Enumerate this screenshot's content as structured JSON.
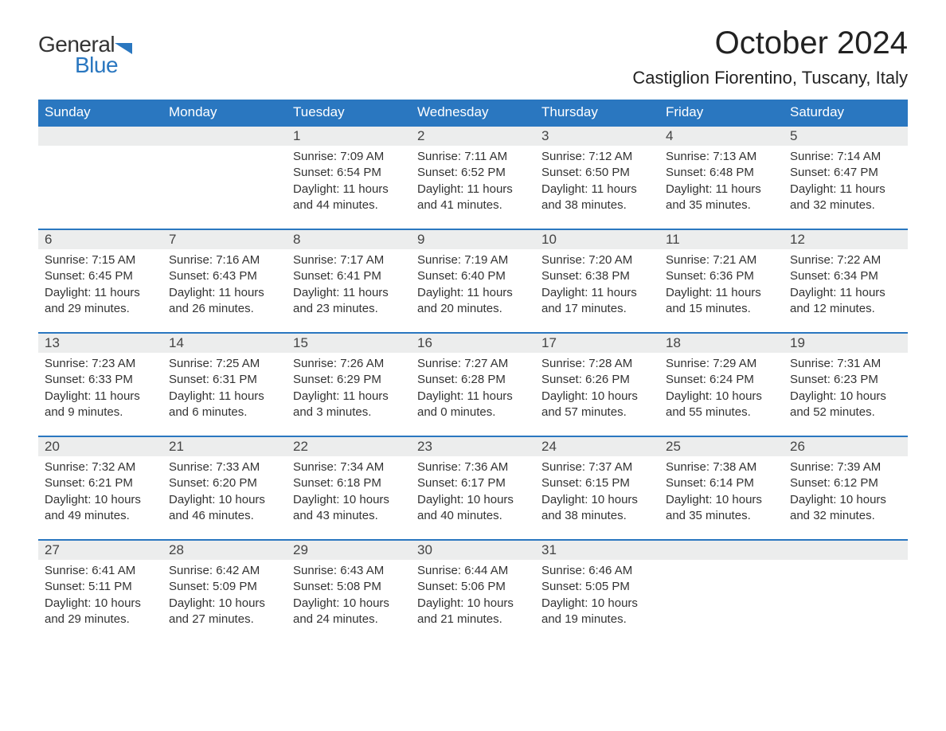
{
  "brand": {
    "text1": "General",
    "text2": "Blue",
    "icon_color": "#2a77c0"
  },
  "title": "October 2024",
  "location": "Castiglion Fiorentino, Tuscany, Italy",
  "colors": {
    "header_bg": "#2a77c0",
    "header_text": "#ffffff",
    "daynum_bg": "#eceded",
    "daynum_border": "#2a77c0",
    "body_text": "#333333",
    "page_bg": "#ffffff"
  },
  "typography": {
    "title_fontsize": 40,
    "location_fontsize": 22,
    "header_fontsize": 17,
    "daynum_fontsize": 17,
    "detail_fontsize": 15
  },
  "daysOfWeek": [
    "Sunday",
    "Monday",
    "Tuesday",
    "Wednesday",
    "Thursday",
    "Friday",
    "Saturday"
  ],
  "weeks": [
    [
      null,
      null,
      {
        "n": "1",
        "sunrise": "7:09 AM",
        "sunset": "6:54 PM",
        "daylight": "11 hours and 44 minutes."
      },
      {
        "n": "2",
        "sunrise": "7:11 AM",
        "sunset": "6:52 PM",
        "daylight": "11 hours and 41 minutes."
      },
      {
        "n": "3",
        "sunrise": "7:12 AM",
        "sunset": "6:50 PM",
        "daylight": "11 hours and 38 minutes."
      },
      {
        "n": "4",
        "sunrise": "7:13 AM",
        "sunset": "6:48 PM",
        "daylight": "11 hours and 35 minutes."
      },
      {
        "n": "5",
        "sunrise": "7:14 AM",
        "sunset": "6:47 PM",
        "daylight": "11 hours and 32 minutes."
      }
    ],
    [
      {
        "n": "6",
        "sunrise": "7:15 AM",
        "sunset": "6:45 PM",
        "daylight": "11 hours and 29 minutes."
      },
      {
        "n": "7",
        "sunrise": "7:16 AM",
        "sunset": "6:43 PM",
        "daylight": "11 hours and 26 minutes."
      },
      {
        "n": "8",
        "sunrise": "7:17 AM",
        "sunset": "6:41 PM",
        "daylight": "11 hours and 23 minutes."
      },
      {
        "n": "9",
        "sunrise": "7:19 AM",
        "sunset": "6:40 PM",
        "daylight": "11 hours and 20 minutes."
      },
      {
        "n": "10",
        "sunrise": "7:20 AM",
        "sunset": "6:38 PM",
        "daylight": "11 hours and 17 minutes."
      },
      {
        "n": "11",
        "sunrise": "7:21 AM",
        "sunset": "6:36 PM",
        "daylight": "11 hours and 15 minutes."
      },
      {
        "n": "12",
        "sunrise": "7:22 AM",
        "sunset": "6:34 PM",
        "daylight": "11 hours and 12 minutes."
      }
    ],
    [
      {
        "n": "13",
        "sunrise": "7:23 AM",
        "sunset": "6:33 PM",
        "daylight": "11 hours and 9 minutes."
      },
      {
        "n": "14",
        "sunrise": "7:25 AM",
        "sunset": "6:31 PM",
        "daylight": "11 hours and 6 minutes."
      },
      {
        "n": "15",
        "sunrise": "7:26 AM",
        "sunset": "6:29 PM",
        "daylight": "11 hours and 3 minutes."
      },
      {
        "n": "16",
        "sunrise": "7:27 AM",
        "sunset": "6:28 PM",
        "daylight": "11 hours and 0 minutes."
      },
      {
        "n": "17",
        "sunrise": "7:28 AM",
        "sunset": "6:26 PM",
        "daylight": "10 hours and 57 minutes."
      },
      {
        "n": "18",
        "sunrise": "7:29 AM",
        "sunset": "6:24 PM",
        "daylight": "10 hours and 55 minutes."
      },
      {
        "n": "19",
        "sunrise": "7:31 AM",
        "sunset": "6:23 PM",
        "daylight": "10 hours and 52 minutes."
      }
    ],
    [
      {
        "n": "20",
        "sunrise": "7:32 AM",
        "sunset": "6:21 PM",
        "daylight": "10 hours and 49 minutes."
      },
      {
        "n": "21",
        "sunrise": "7:33 AM",
        "sunset": "6:20 PM",
        "daylight": "10 hours and 46 minutes."
      },
      {
        "n": "22",
        "sunrise": "7:34 AM",
        "sunset": "6:18 PM",
        "daylight": "10 hours and 43 minutes."
      },
      {
        "n": "23",
        "sunrise": "7:36 AM",
        "sunset": "6:17 PM",
        "daylight": "10 hours and 40 minutes."
      },
      {
        "n": "24",
        "sunrise": "7:37 AM",
        "sunset": "6:15 PM",
        "daylight": "10 hours and 38 minutes."
      },
      {
        "n": "25",
        "sunrise": "7:38 AM",
        "sunset": "6:14 PM",
        "daylight": "10 hours and 35 minutes."
      },
      {
        "n": "26",
        "sunrise": "7:39 AM",
        "sunset": "6:12 PM",
        "daylight": "10 hours and 32 minutes."
      }
    ],
    [
      {
        "n": "27",
        "sunrise": "6:41 AM",
        "sunset": "5:11 PM",
        "daylight": "10 hours and 29 minutes."
      },
      {
        "n": "28",
        "sunrise": "6:42 AM",
        "sunset": "5:09 PM",
        "daylight": "10 hours and 27 minutes."
      },
      {
        "n": "29",
        "sunrise": "6:43 AM",
        "sunset": "5:08 PM",
        "daylight": "10 hours and 24 minutes."
      },
      {
        "n": "30",
        "sunrise": "6:44 AM",
        "sunset": "5:06 PM",
        "daylight": "10 hours and 21 minutes."
      },
      {
        "n": "31",
        "sunrise": "6:46 AM",
        "sunset": "5:05 PM",
        "daylight": "10 hours and 19 minutes."
      },
      null,
      null
    ]
  ],
  "labels": {
    "sunrise": "Sunrise: ",
    "sunset": "Sunset: ",
    "daylight": "Daylight: "
  }
}
